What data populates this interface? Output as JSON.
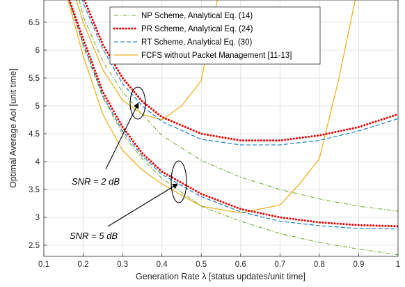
{
  "chart_data": {
    "type": "line",
    "xlabel": "Generation Rate λ [status updates/unit time]",
    "ylabel": "Optimal Average AoI [unit time]",
    "xlim": [
      0.1,
      1.0
    ],
    "ylim": [
      2.3,
      6.9
    ],
    "xticks": [
      "0.1",
      "0.2",
      "0.3",
      "0.4",
      "0.5",
      "0.6",
      "0.7",
      "0.8",
      "0.9",
      "1"
    ],
    "yticks": [
      "2.5",
      "3",
      "3.5",
      "4",
      "4.5",
      "5",
      "5.5",
      "6",
      "6.5"
    ],
    "grid": true,
    "legend_placement": "top-right",
    "series": [
      {
        "name": "NP Scheme, Analytical Eq. (14)",
        "group": "SNR = 2 dB",
        "color": "#77ac30",
        "style": "dashdot",
        "x": [
          0.18,
          0.2,
          0.25,
          0.3,
          0.35,
          0.4,
          0.5,
          0.6,
          0.7,
          0.8,
          0.9,
          1.0
        ],
        "y": [
          7.2,
          6.6,
          5.8,
          5.25,
          4.85,
          4.47,
          4.02,
          3.72,
          3.5,
          3.33,
          3.2,
          3.11
        ]
      },
      {
        "name": "PR Scheme, Analytical Eq. (24)",
        "group": "SNR = 2 dB",
        "color": "#ee0000",
        "style": "dotted",
        "x": [
          0.19,
          0.2,
          0.25,
          0.3,
          0.35,
          0.4,
          0.5,
          0.6,
          0.7,
          0.8,
          0.9,
          1.0
        ],
        "y": [
          7.2,
          6.95,
          6.1,
          5.5,
          5.08,
          4.8,
          4.5,
          4.38,
          4.38,
          4.47,
          4.62,
          4.85
        ]
      },
      {
        "name": "RT Scheme, Analytical Eq. (30)",
        "group": "SNR = 2 dB",
        "color": "#0072bd",
        "style": "dashed",
        "x": [
          0.19,
          0.2,
          0.25,
          0.3,
          0.35,
          0.4,
          0.5,
          0.6,
          0.7,
          0.8,
          0.9,
          1.0
        ],
        "y": [
          7.15,
          6.85,
          6.02,
          5.4,
          5.0,
          4.72,
          4.4,
          4.3,
          4.3,
          4.38,
          4.55,
          4.77
        ]
      },
      {
        "name": "FCFS without Packet Management [11-13]",
        "group": "SNR = 2 dB",
        "color": "#edb120",
        "style": "solid",
        "x": [
          0.17,
          0.2,
          0.25,
          0.3,
          0.35,
          0.4,
          0.45,
          0.5,
          0.52,
          0.55
        ],
        "y": [
          7.2,
          6.5,
          5.65,
          5.1,
          4.85,
          4.75,
          5.0,
          5.45,
          6.2,
          7.2
        ]
      },
      {
        "name": "NP Scheme, Analytical Eq. (14)",
        "group": "SNR = 5 dB",
        "color": "#77ac30",
        "style": "dashdot",
        "x": [
          0.15,
          0.2,
          0.25,
          0.3,
          0.35,
          0.4,
          0.5,
          0.6,
          0.7,
          0.8,
          0.9,
          1.0
        ],
        "y": [
          7.2,
          6.08,
          5.15,
          4.5,
          4.05,
          3.7,
          3.2,
          2.93,
          2.71,
          2.55,
          2.43,
          2.33
        ]
      },
      {
        "name": "PR Scheme, Analytical Eq. (24)",
        "group": "SNR = 5 dB",
        "color": "#ee0000",
        "style": "dotted",
        "x": [
          0.15,
          0.2,
          0.25,
          0.3,
          0.35,
          0.4,
          0.5,
          0.6,
          0.7,
          0.8,
          0.9,
          1.0
        ],
        "y": [
          7.2,
          6.2,
          5.25,
          4.62,
          4.15,
          3.82,
          3.42,
          3.15,
          3.0,
          2.91,
          2.86,
          2.84
        ]
      },
      {
        "name": "RT Scheme, Analytical Eq. (30)",
        "group": "SNR = 5 dB",
        "color": "#0072bd",
        "style": "dashed",
        "x": [
          0.15,
          0.2,
          0.25,
          0.3,
          0.35,
          0.4,
          0.5,
          0.6,
          0.7,
          0.8,
          0.9,
          1.0
        ],
        "y": [
          7.2,
          6.12,
          5.18,
          4.55,
          4.1,
          3.77,
          3.37,
          3.1,
          2.93,
          2.85,
          2.8,
          2.79
        ]
      },
      {
        "name": "FCFS without Packet Management [11-13]",
        "group": "SNR = 5 dB",
        "color": "#edb120",
        "style": "solid",
        "x": [
          0.15,
          0.2,
          0.25,
          0.3,
          0.35,
          0.4,
          0.5,
          0.6,
          0.7,
          0.75,
          0.8,
          0.85,
          0.9
        ],
        "y": [
          7.2,
          5.9,
          4.85,
          4.2,
          3.85,
          3.6,
          3.2,
          3.08,
          3.22,
          3.6,
          4.05,
          5.5,
          7.2
        ]
      }
    ],
    "annotations": [
      {
        "text": "SNR = 2 dB",
        "points_to_x": 0.34,
        "points_to_y": 5.05
      },
      {
        "text": "SNR = 5 dB",
        "points_to_x": 0.44,
        "points_to_y": 3.6
      }
    ]
  }
}
